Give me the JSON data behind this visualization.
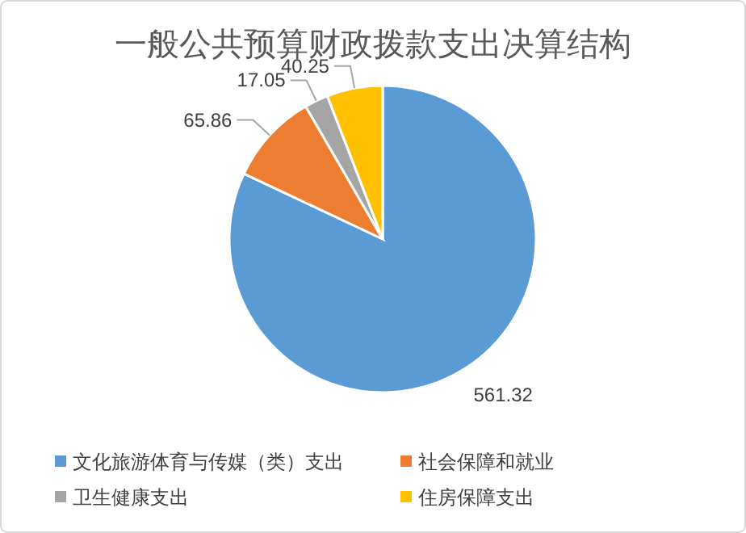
{
  "chart_data": {
    "type": "pie",
    "title": "一般公共预算财政拨款支出决算结构",
    "categories": [
      "文化旅游体育与传媒（类）支出",
      "社会保障和就业",
      "卫生健康支出",
      "住房保障支出"
    ],
    "values": [
      561.32,
      65.86,
      17.05,
      40.25
    ],
    "colors": [
      "#5b9bd5",
      "#ed7d31",
      "#a5a5a5",
      "#ffc000"
    ],
    "data_labels": true,
    "legend": "bottom"
  }
}
